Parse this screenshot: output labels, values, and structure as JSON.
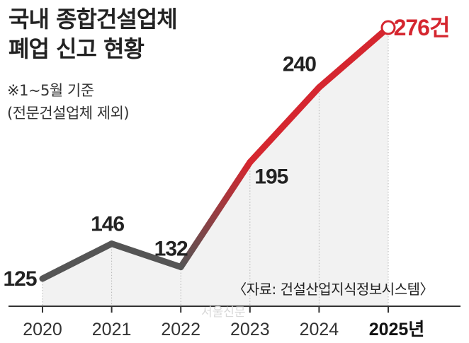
{
  "title": {
    "line1": "국내 종합건설업체",
    "line2": "폐업 신고 현황"
  },
  "note": {
    "line1": "※1~5월 기준",
    "line2": "(전문건설업체 제외)"
  },
  "source": "〈자료: 건설산업지식정보시스템〉",
  "watermark": "서울신문",
  "colors": {
    "line_dark": "#555555",
    "line_red": "#d5262f",
    "fill": "#f2f2f2",
    "axis": "#333333"
  },
  "chart_data": {
    "type": "line",
    "categories": [
      "2020",
      "2021",
      "2022",
      "2023",
      "2024",
      "2025년"
    ],
    "values": [
      125,
      146,
      132,
      195,
      240,
      276
    ],
    "value_labels": [
      "125",
      "146",
      "132",
      "195",
      "240",
      "276건"
    ],
    "ylim": [
      80,
      290
    ],
    "grid": false,
    "highlight_last": true
  }
}
